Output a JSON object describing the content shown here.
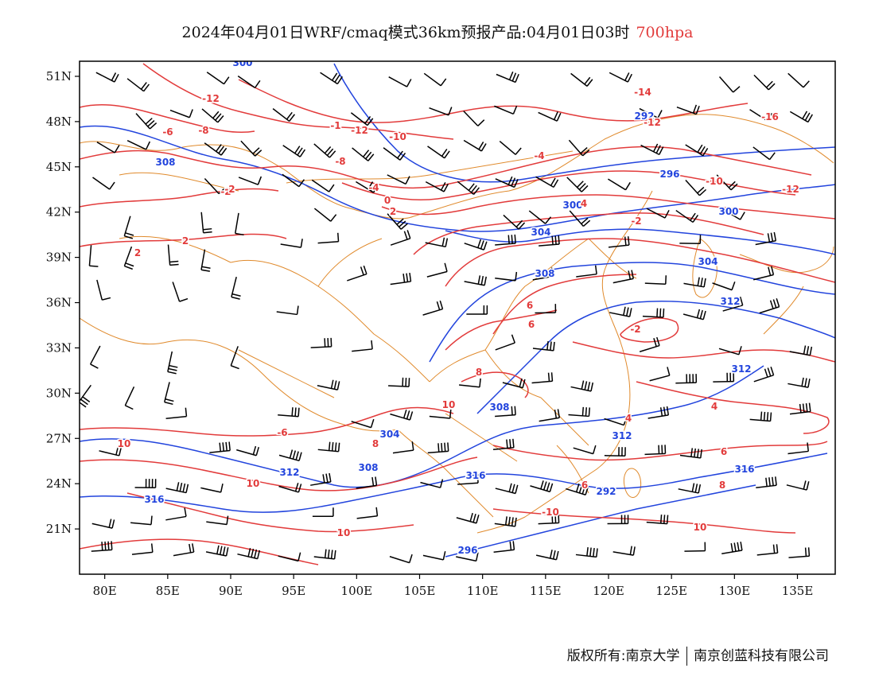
{
  "title": {
    "main": "2024年04月01日WRF/cmaq模式36km预报产品:04月01日03时",
    "level": "700hpa"
  },
  "axes": {
    "lon_labels": [
      "80E",
      "85E",
      "90E",
      "95E",
      "100E",
      "105E",
      "110E",
      "115E",
      "120E",
      "125E",
      "130E",
      "135E"
    ],
    "lat_labels": [
      "51N",
      "48N",
      "45N",
      "42N",
      "39N",
      "36N",
      "33N",
      "30N",
      "27N",
      "24N",
      "21N"
    ]
  },
  "colors": {
    "temperature": "#e23b3b",
    "height": "#2244dd",
    "boundary": "#e08a2c",
    "wind": "#000000"
  },
  "contour_labels": {
    "height": [
      "300",
      "308",
      "292",
      "296",
      "300",
      "304",
      "308",
      "312",
      "308",
      "304",
      "312",
      "308",
      "312",
      "316",
      "312",
      "316",
      "316",
      "292",
      "296",
      "300",
      "304"
    ],
    "temperature": [
      "-12",
      "-6",
      "-8",
      "-2",
      "-4",
      "-10",
      "-12",
      "-14",
      "-16",
      "-12",
      "-10",
      "-8",
      "-2",
      "0",
      "2",
      "4",
      "6",
      "8",
      "6",
      "10",
      "10",
      "10",
      "10",
      "10",
      "-6",
      "-2",
      "4",
      "2",
      "8",
      "6",
      "8",
      "6",
      "4",
      "-10",
      "-1",
      "-2",
      "-4",
      "2",
      "-12"
    ]
  },
  "footer": {
    "left": "版权所有:南京大学",
    "right": "南京创蓝科技有限公司"
  }
}
